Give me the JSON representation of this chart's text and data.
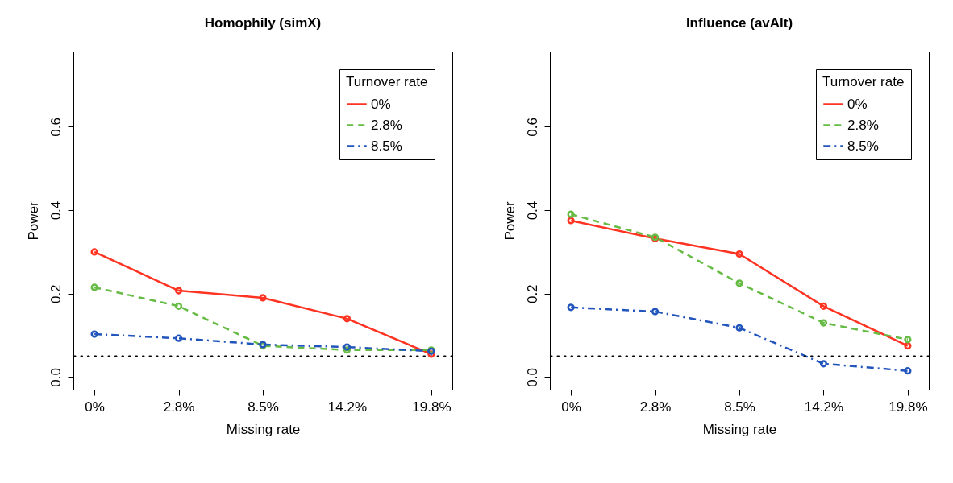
{
  "chart_data": [
    {
      "type": "line",
      "title": "Homophily (simX)",
      "xlabel": "Missing rate",
      "ylabel": "Power",
      "legend_title": "Turnover rate",
      "categories": [
        "0%",
        "2.8%",
        "8.5%",
        "14.2%",
        "19.8%"
      ],
      "ylim": [
        -0.03,
        0.78
      ],
      "yticks": [
        {
          "value": 0,
          "label": "0.0"
        },
        0.2,
        0.4,
        0.6
      ],
      "grid": false,
      "legend": "top right",
      "marker": "circle",
      "series": [
        {
          "name": "0%",
          "color": "#ff3322",
          "line_style": "solid",
          "values": [
            0.3,
            0.207,
            0.19,
            0.14,
            0.055
          ]
        },
        {
          "name": "2.8%",
          "color": "#66bb44",
          "line_style": "dashed",
          "values": [
            0.215,
            0.17,
            0.075,
            0.065,
            0.065
          ]
        },
        {
          "name": "8.5%",
          "color": "#2255bb",
          "line_style": "dashdot",
          "values": [
            0.103,
            0.093,
            0.078,
            0.072,
            0.062
          ]
        }
      ],
      "ref_lines": [
        {
          "axis": "y",
          "value": 0.05,
          "color": "#000000",
          "line_style": "dotted"
        }
      ]
    },
    {
      "type": "line",
      "title": "Influence (avAlt)",
      "xlabel": "Missing rate",
      "ylabel": "Power",
      "legend_title": "Turnover rate",
      "categories": [
        "0%",
        "2.8%",
        "8.5%",
        "14.2%",
        "19.8%"
      ],
      "ylim": [
        -0.03,
        0.78
      ],
      "yticks": [
        {
          "value": 0,
          "label": "0.0"
        },
        0.2,
        0.4,
        0.6
      ],
      "grid": false,
      "legend": "top right",
      "marker": "circle",
      "series": [
        {
          "name": "0%",
          "color": "#ff3322",
          "line_style": "solid",
          "values": [
            0.375,
            0.332,
            0.295,
            0.17,
            0.075
          ]
        },
        {
          "name": "2.8%",
          "color": "#66bb44",
          "line_style": "dashed",
          "values": [
            0.39,
            0.335,
            0.225,
            0.13,
            0.09
          ]
        },
        {
          "name": "8.5%",
          "color": "#2255bb",
          "line_style": "dashdot",
          "values": [
            0.167,
            0.157,
            0.118,
            0.032,
            0.015
          ]
        }
      ],
      "ref_lines": [
        {
          "axis": "y",
          "value": 0.05,
          "color": "#000000",
          "line_style": "dotted"
        }
      ]
    }
  ]
}
